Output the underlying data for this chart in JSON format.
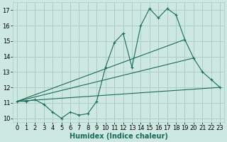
{
  "xlabel": "Humidex (Indice chaleur)",
  "bg_color": "#cce8e0",
  "grid_color": "#aacfc8",
  "line_color": "#1a6b5a",
  "xlim": [
    -0.5,
    23.5
  ],
  "ylim": [
    9.75,
    17.5
  ],
  "xticks": [
    0,
    1,
    2,
    3,
    4,
    5,
    6,
    7,
    8,
    9,
    10,
    11,
    12,
    13,
    14,
    15,
    16,
    17,
    18,
    19,
    20,
    21,
    22,
    23
  ],
  "yticks": [
    10,
    11,
    12,
    13,
    14,
    15,
    16,
    17
  ],
  "line1_x": [
    0,
    1,
    2,
    3,
    4,
    5,
    6,
    7,
    8,
    9,
    10,
    11,
    12,
    13,
    14,
    15,
    16,
    17,
    18,
    19,
    20,
    21,
    22,
    23
  ],
  "line1_y": [
    11.1,
    11.1,
    11.2,
    10.9,
    10.4,
    10.0,
    10.4,
    10.2,
    10.3,
    11.1,
    13.3,
    14.9,
    15.5,
    13.3,
    16.0,
    17.1,
    16.5,
    17.1,
    16.7,
    15.1,
    13.9,
    13.0,
    12.5,
    12.0
  ],
  "line2_x": [
    0,
    19
  ],
  "line2_y": [
    11.1,
    15.1
  ],
  "line3_x": [
    0,
    20
  ],
  "line3_y": [
    11.1,
    13.9
  ],
  "line4_x": [
    0,
    23
  ],
  "line4_y": [
    11.1,
    12.0
  ],
  "xlabel_fontsize": 7,
  "tick_fontsize": 6
}
